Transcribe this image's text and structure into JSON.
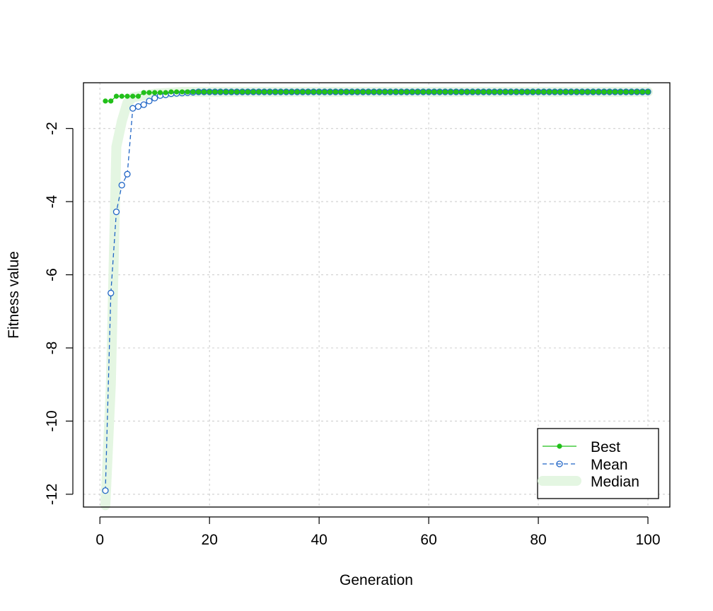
{
  "chart_data": {
    "type": "line",
    "title": "",
    "xlabel": "Generation",
    "ylabel": "Fitness value",
    "xlim": [
      -3,
      104
    ],
    "ylim": [
      -12.35,
      -0.75
    ],
    "x_ticks": [
      0,
      20,
      40,
      60,
      80,
      100
    ],
    "x_tick_labels": [
      "0",
      "20",
      "40",
      "60",
      "80",
      "100"
    ],
    "y_ticks": [
      -12,
      -10,
      -8,
      -6,
      -4,
      -2
    ],
    "y_tick_labels": [
      "-12",
      "-10",
      "-8",
      "-6",
      "-4",
      "-2"
    ],
    "grid": true,
    "legend_position": "bottom-right",
    "legend": [
      {
        "label": "Best",
        "color": "#22c01a",
        "style": "solid-filled-dots"
      },
      {
        "label": "Mean",
        "color": "#2166c6",
        "style": "dashed-open-circles"
      },
      {
        "label": "Median",
        "color": "#e4f6e2",
        "style": "band"
      }
    ],
    "colors": {
      "best": "#22c01a",
      "mean": "#2166c6",
      "median_band": "#e4f6e2",
      "grid": "#cfcfcf"
    },
    "generations": 100,
    "series": [
      {
        "name": "Best",
        "x_start": 1,
        "values": [
          -1.25,
          -1.25,
          -1.12,
          -1.12,
          -1.12,
          -1.12,
          -1.12,
          -1.02,
          -1.02,
          -1.02,
          -1.02,
          -1.02,
          -1.0,
          -1.0,
          -1.0,
          -1.0,
          -1.0,
          -1.0,
          -1.0,
          -1.0,
          -1.0,
          -1.0,
          -1.0,
          -1.0,
          -1.0,
          -1.0,
          -1.0,
          -1.0,
          -1.0,
          -1.0,
          -1.0,
          -1.0,
          -1.0,
          -1.0,
          -1.0,
          -1.0,
          -1.0,
          -1.0,
          -1.0,
          -1.0,
          -1.0,
          -1.0,
          -1.0,
          -1.0,
          -1.0,
          -1.0,
          -1.0,
          -1.0,
          -1.0,
          -1.0,
          -1.0,
          -1.0,
          -1.0,
          -1.0,
          -1.0,
          -1.0,
          -1.0,
          -1.0,
          -1.0,
          -1.0,
          -1.0,
          -1.0,
          -1.0,
          -1.0,
          -1.0,
          -1.0,
          -1.0,
          -1.0,
          -1.0,
          -1.0,
          -1.0,
          -1.0,
          -1.0,
          -1.0,
          -1.0,
          -1.0,
          -1.0,
          -1.0,
          -1.0,
          -1.0,
          -1.0,
          -1.0,
          -1.0,
          -1.0,
          -1.0,
          -1.0,
          -1.0,
          -1.0,
          -1.0,
          -1.0,
          -1.0,
          -1.0,
          -1.0,
          -1.0,
          -1.0,
          -1.0,
          -1.0,
          -1.0,
          -1.0,
          -1.0
        ]
      },
      {
        "name": "Mean",
        "x_start": 1,
        "values": [
          -11.9,
          -6.5,
          -4.28,
          -3.55,
          -3.25,
          -1.45,
          -1.4,
          -1.35,
          -1.25,
          -1.17,
          -1.1,
          -1.08,
          -1.05,
          -1.04,
          -1.03,
          -1.02,
          -1.01,
          -1.0,
          -1.0,
          -1.0,
          -1.0,
          -1.0,
          -1.0,
          -1.0,
          -1.0,
          -1.0,
          -1.0,
          -1.0,
          -1.0,
          -1.0,
          -1.0,
          -1.0,
          -1.0,
          -1.0,
          -1.0,
          -1.0,
          -1.0,
          -1.0,
          -1.0,
          -1.0,
          -1.0,
          -1.0,
          -1.0,
          -1.0,
          -1.0,
          -1.0,
          -1.0,
          -1.0,
          -1.0,
          -1.0,
          -1.0,
          -1.0,
          -1.0,
          -1.0,
          -1.0,
          -1.0,
          -1.0,
          -1.0,
          -1.0,
          -1.0,
          -1.0,
          -1.0,
          -1.0,
          -1.0,
          -1.0,
          -1.0,
          -1.0,
          -1.0,
          -1.0,
          -1.0,
          -1.0,
          -1.0,
          -1.0,
          -1.0,
          -1.0,
          -1.0,
          -1.0,
          -1.0,
          -1.0,
          -1.0,
          -1.0,
          -1.0,
          -1.0,
          -1.0,
          -1.0,
          -1.0,
          -1.0,
          -1.0,
          -1.0,
          -1.0,
          -1.0,
          -1.0,
          -1.0,
          -1.0,
          -1.0,
          -1.0,
          -1.0,
          -1.0,
          -1.0,
          -1.0
        ]
      },
      {
        "name": "Median",
        "x": [
          1,
          2,
          3,
          4,
          5,
          6,
          8,
          10,
          15,
          20,
          100
        ],
        "values": [
          -12.3,
          -9.0,
          -2.5,
          -1.8,
          -1.3,
          -1.15,
          -1.1,
          -1.05,
          -1.0,
          -1.0,
          -1.0
        ]
      }
    ]
  }
}
